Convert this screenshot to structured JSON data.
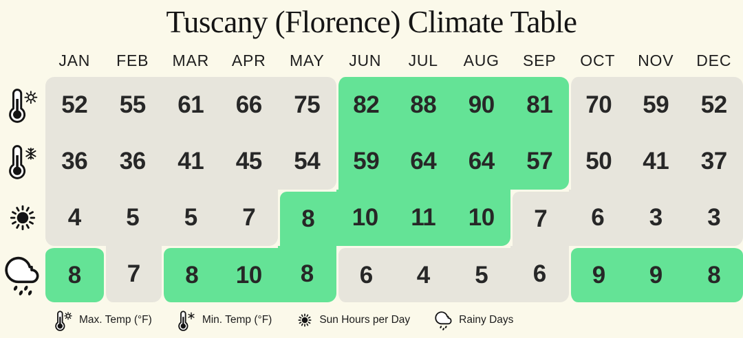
{
  "title": "Tuscany (Florence) Climate Table",
  "months": [
    "JAN",
    "FEB",
    "MAR",
    "APR",
    "MAY",
    "JUN",
    "JUL",
    "AUG",
    "SEP",
    "OCT",
    "NOV",
    "DEC"
  ],
  "rows": [
    {
      "name": "max-temp",
      "icon": "thermometer-sun-icon",
      "values": [
        52,
        55,
        61,
        66,
        75,
        82,
        88,
        90,
        81,
        70,
        59,
        52
      ],
      "highlight": [
        false,
        false,
        false,
        false,
        false,
        true,
        true,
        true,
        true,
        false,
        false,
        false
      ]
    },
    {
      "name": "min-temp",
      "icon": "thermometer-snowflake-icon",
      "values": [
        36,
        36,
        41,
        45,
        54,
        59,
        64,
        64,
        57,
        50,
        41,
        37
      ],
      "highlight": [
        false,
        false,
        false,
        false,
        false,
        true,
        true,
        true,
        true,
        false,
        false,
        false
      ]
    },
    {
      "name": "sun-hours",
      "icon": "sun-icon",
      "values": [
        4,
        5,
        5,
        7,
        8,
        10,
        11,
        10,
        7,
        6,
        3,
        3
      ],
      "highlight": [
        false,
        false,
        false,
        false,
        true,
        true,
        true,
        true,
        false,
        false,
        false,
        false
      ]
    },
    {
      "name": "rainy-days",
      "icon": "cloud-rain-icon",
      "values": [
        8,
        7,
        8,
        10,
        8,
        6,
        4,
        5,
        6,
        9,
        9,
        8
      ],
      "highlight": [
        true,
        false,
        true,
        true,
        true,
        false,
        false,
        false,
        false,
        true,
        true,
        true
      ]
    }
  ],
  "legend": [
    {
      "icon": "thermometer-sun-icon",
      "label": "Max. Temp (°F)"
    },
    {
      "icon": "thermometer-snowflake-icon",
      "label": "Min. Temp (°F)"
    },
    {
      "icon": "sun-icon",
      "label": "Sun Hours per Day"
    },
    {
      "icon": "cloud-rain-icon",
      "label": "Rainy Days"
    }
  ],
  "colors": {
    "background": "#FBF9EA",
    "cell": "#E7E5DC",
    "highlight": "#64E396",
    "text": "#272727"
  },
  "chart_data": {
    "type": "table",
    "title": "Tuscany (Florence) Climate Table",
    "categories": [
      "JAN",
      "FEB",
      "MAR",
      "APR",
      "MAY",
      "JUN",
      "JUL",
      "AUG",
      "SEP",
      "OCT",
      "NOV",
      "DEC"
    ],
    "series": [
      {
        "name": "Max. Temp (°F)",
        "values": [
          52,
          55,
          61,
          66,
          75,
          82,
          88,
          90,
          81,
          70,
          59,
          52
        ],
        "highlighted_months": [
          "JUN",
          "JUL",
          "AUG",
          "SEP"
        ]
      },
      {
        "name": "Min. Temp (°F)",
        "values": [
          36,
          36,
          41,
          45,
          54,
          59,
          64,
          64,
          57,
          50,
          41,
          37
        ],
        "highlighted_months": [
          "JUN",
          "JUL",
          "AUG",
          "SEP"
        ]
      },
      {
        "name": "Sun Hours per Day",
        "values": [
          4,
          5,
          5,
          7,
          8,
          10,
          11,
          10,
          7,
          6,
          3,
          3
        ],
        "highlighted_months": [
          "MAY",
          "JUN",
          "JUL",
          "AUG"
        ]
      },
      {
        "name": "Rainy Days",
        "values": [
          8,
          7,
          8,
          10,
          8,
          6,
          4,
          5,
          6,
          9,
          9,
          8
        ],
        "highlighted_months": [
          "JAN",
          "MAR",
          "APR",
          "MAY",
          "OCT",
          "NOV",
          "DEC"
        ]
      }
    ],
    "legend_position": "bottom",
    "highlight_color": "#64E396",
    "cell_color": "#E7E5DC"
  }
}
